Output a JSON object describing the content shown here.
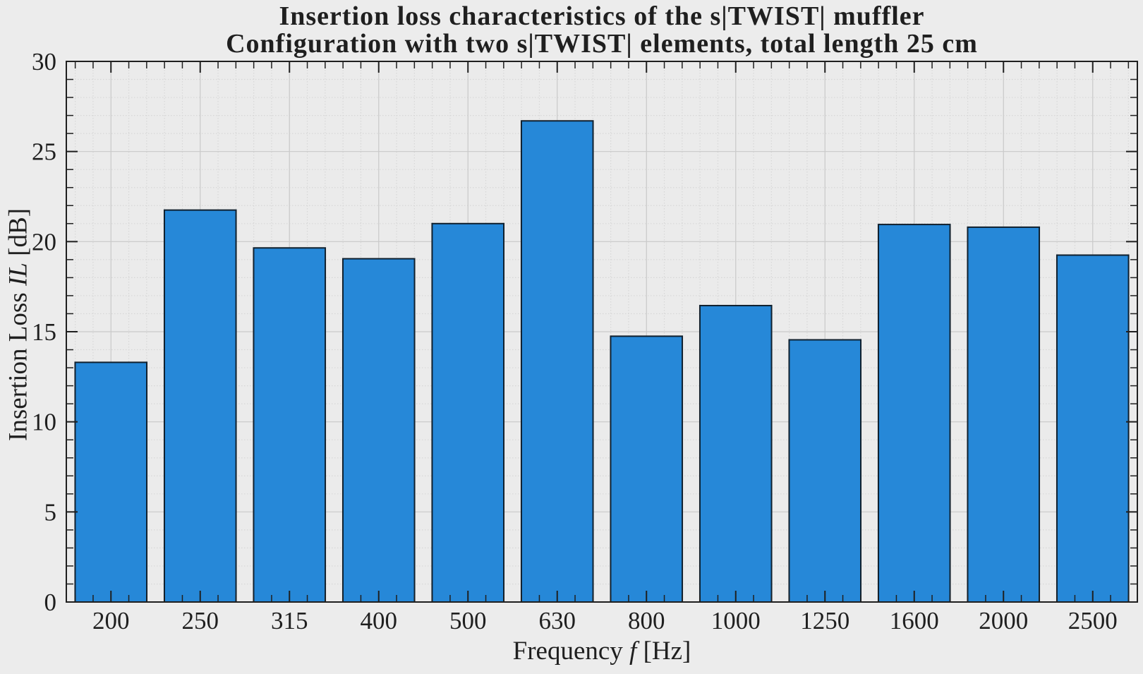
{
  "chart_data": {
    "type": "bar",
    "title": {
      "line1": "Insertion loss characteristics of the s|TWIST| muffler",
      "line2": "Configuration with two s|TWIST| elements, total length 25 cm"
    },
    "xlabel": {
      "pre": "Frequency ",
      "italic": "f",
      "post": " [Hz]"
    },
    "ylabel": {
      "pre": "Insertion Loss ",
      "italic": "IL",
      "post": " [dB]"
    },
    "categories": [
      "200",
      "250",
      "315",
      "400",
      "500",
      "630",
      "800",
      "1000",
      "1250",
      "1600",
      "2000",
      "2500"
    ],
    "values": [
      13.3,
      21.75,
      19.65,
      19.05,
      21.0,
      26.7,
      14.75,
      16.45,
      14.55,
      20.95,
      20.8,
      19.25
    ],
    "value_unit": "dB",
    "ylim": [
      0,
      30
    ],
    "yticks": [
      0,
      5,
      10,
      15,
      20,
      25,
      30
    ],
    "y_minor_step": 1,
    "x_minor_per_category": 5,
    "bar_width_frac": 0.803,
    "grid": {
      "major": true,
      "minor": true,
      "minor_style": "dotted"
    },
    "legend": "none",
    "colors": {
      "background": "#ececec",
      "plot_background": "#ebebeb",
      "bar_fill": "#2688d8",
      "bar_edge": "#10202e",
      "axis": "#1f1f1f",
      "grid_major": "#c9c9c9",
      "grid_minor": "#d7d7d7",
      "text": "#1f1f1f"
    }
  }
}
